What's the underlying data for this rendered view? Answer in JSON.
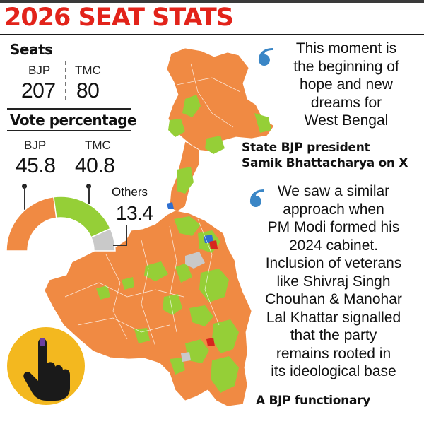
{
  "title": "2026 SEAT STATS",
  "seats": {
    "heading": "Seats",
    "bjp_label": "BJP",
    "bjp_value": "207",
    "tmc_label": "TMC",
    "tmc_value": "80"
  },
  "vote": {
    "heading": "Vote percentage",
    "bjp_label": "BJP",
    "bjp_value": "45.8",
    "tmc_label": "TMC",
    "tmc_value": "40.8",
    "others_label": "Others",
    "others_value": "13.4",
    "gauge_shares": [
      45.8,
      40.8,
      13.4
    ]
  },
  "colors": {
    "bjp": "#f08a43",
    "tmc": "#95cf37",
    "others": "#c9c9c9",
    "title": "#e2231a",
    "quote_mark": "#3a86c6",
    "badge": "#f3b81f"
  },
  "quote1": {
    "lines": [
      "This moment is",
      "the beginning of",
      "hope and new",
      "dreams for",
      "West Bengal"
    ],
    "attribution": [
      "State BJP president",
      "Samik Bhattacharya on X"
    ]
  },
  "quote2": {
    "lines": [
      "We saw a similar",
      "approach when",
      "PM Modi formed his",
      "2024 cabinet.",
      "Inclusion of veterans",
      "like Shivraj Singh",
      "Chouhan & Manohar",
      "Lal Khattar signalled",
      "that the party",
      "remains rooted in",
      "its ideological base"
    ],
    "attribution": [
      "A BJP functionary"
    ]
  },
  "icons": {
    "quote": "quote-mark-icon",
    "voting": "voting-finger-icon"
  }
}
